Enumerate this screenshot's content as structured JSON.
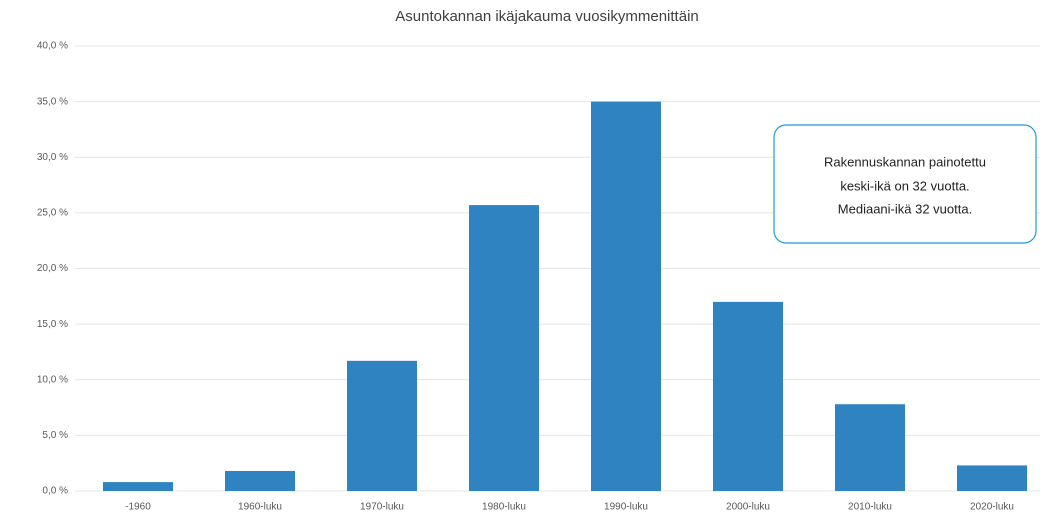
{
  "chart_data": {
    "type": "bar",
    "title": "Asuntokannan ikäjakauma vuosikymmenittäin",
    "categories": [
      "-1960",
      "1960-luku",
      "1970-luku",
      "1980-luku",
      "1990-luku",
      "2000-luku",
      "2010-luku",
      "2020-luku"
    ],
    "values": [
      0.8,
      1.8,
      11.7,
      25.7,
      35.0,
      17.0,
      7.8,
      2.3
    ],
    "color": "#2e83c0",
    "ylim": [
      0,
      40
    ],
    "yticks": [
      {
        "value": 0,
        "label": "0,0 %"
      },
      {
        "value": 5,
        "label": "5,0 %"
      },
      {
        "value": 10,
        "label": "10,0 %"
      },
      {
        "value": 15,
        "label": "15,0 %"
      },
      {
        "value": 20,
        "label": "20,0 %"
      },
      {
        "value": 25,
        "label": "25,0 %"
      },
      {
        "value": 30,
        "label": "30,0 %"
      },
      {
        "value": 35,
        "label": "35,0 %"
      },
      {
        "value": 40,
        "label": "40,0 %"
      }
    ],
    "grid": true,
    "annotation": [
      "Rakennuskannan painotettu",
      "keski-ikä on 32 vuotta.",
      "Mediaani-ikä 32 vuotta."
    ]
  }
}
